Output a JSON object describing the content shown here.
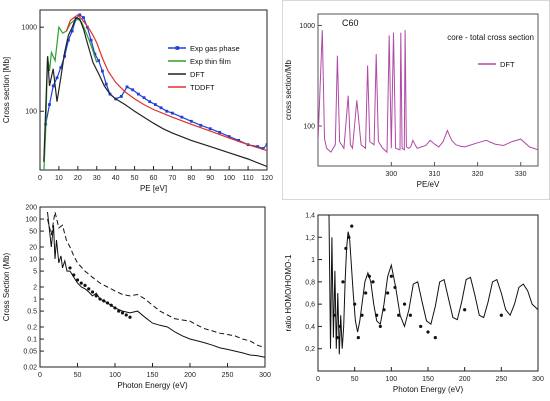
{
  "chart_data": [
    {
      "type": "line",
      "xlabel": "PE [eV]",
      "ylabel": "Cross section [Mb]",
      "xlim": [
        0,
        120
      ],
      "ylim": [
        20,
        1600
      ],
      "yscale": "log",
      "xticks": [
        0,
        10,
        20,
        30,
        40,
        50,
        60,
        70,
        80,
        90,
        100,
        110,
        120
      ],
      "yticks": [
        100,
        1000
      ],
      "legend_position": "right",
      "series": [
        {
          "name": "Exp gas phase",
          "color": "#1f3fd6",
          "marker": "square",
          "x": [
            3,
            5,
            7,
            9,
            11,
            13,
            15,
            17,
            19,
            21,
            23,
            25,
            27,
            29,
            31,
            33,
            35,
            37,
            40,
            43,
            46,
            49,
            52,
            55,
            58,
            61,
            64,
            67,
            70,
            75,
            80,
            85,
            90,
            95,
            100,
            105,
            110,
            115,
            118,
            120
          ],
          "y": [
            70,
            120,
            200,
            250,
            330,
            450,
            700,
            900,
            1250,
            1400,
            1300,
            1000,
            700,
            480,
            400,
            300,
            210,
            160,
            140,
            150,
            195,
            180,
            160,
            145,
            130,
            120,
            110,
            100,
            95,
            85,
            76,
            68,
            62,
            56,
            50,
            45,
            40,
            38,
            36,
            40
          ]
        },
        {
          "name": "Exp thin film",
          "color": "#2ca02c",
          "x": [
            2,
            3,
            4,
            5,
            6,
            8,
            10,
            12,
            14,
            16,
            18,
            20,
            22,
            24,
            26,
            28,
            30
          ],
          "y": [
            18,
            60,
            450,
            300,
            500,
            400,
            1000,
            850,
            900,
            1100,
            1200,
            1250,
            1150,
            900,
            700,
            520,
            380
          ]
        },
        {
          "name": "DFT",
          "color": "#222222",
          "x": [
            2,
            4,
            5,
            7,
            9,
            11,
            13,
            15,
            17,
            19,
            21,
            23,
            25,
            28,
            31,
            34,
            37,
            40,
            45,
            50,
            55,
            60,
            65,
            70,
            80,
            90,
            100,
            110,
            120
          ],
          "y": [
            25,
            450,
            200,
            320,
            130,
            250,
            500,
            800,
            1000,
            1300,
            1250,
            950,
            650,
            380,
            280,
            200,
            160,
            140,
            120,
            100,
            85,
            72,
            62,
            55,
            45,
            38,
            32,
            27,
            22
          ]
        },
        {
          "name": "TDDFT",
          "color": "#e0302a",
          "x": [
            14,
            16,
            18,
            20,
            22,
            24,
            26,
            28,
            30,
            33,
            36,
            40,
            45,
            50,
            55,
            60,
            70,
            80,
            90,
            100,
            110,
            120
          ],
          "y": [
            900,
            1200,
            1300,
            1400,
            1250,
            1100,
            950,
            800,
            650,
            430,
            300,
            220,
            170,
            140,
            120,
            105,
            85,
            70,
            58,
            48,
            40,
            34
          ]
        }
      ]
    },
    {
      "type": "line",
      "title": "C60",
      "subtitle": "core - total cross section",
      "xlabel": "PE/eV",
      "ylabel": "cross section/Mb",
      "xlim": [
        283,
        334
      ],
      "ylim": [
        40,
        1300
      ],
      "yscale": "log",
      "xticks": [
        300,
        310,
        320,
        330
      ],
      "yticks": [
        100,
        1000
      ],
      "legend_position": "top-right",
      "series": [
        {
          "name": "DFT",
          "color": "#b04aa6",
          "x": [
            283,
            284,
            284.5,
            285,
            286,
            287,
            287.5,
            288,
            289,
            290,
            290.5,
            291,
            292,
            293,
            294,
            294.5,
            295,
            296,
            296.5,
            297,
            298,
            299,
            299.5,
            300,
            300.5,
            301,
            302,
            302.2,
            302.5,
            303,
            303.2,
            303.5,
            304,
            304.5,
            305,
            305.5,
            306,
            307,
            308,
            309,
            310,
            311,
            312,
            313,
            314,
            315,
            316,
            317,
            318,
            320,
            322,
            324,
            326,
            328,
            330,
            332,
            334
          ],
          "y": [
            70,
            900,
            75,
            60,
            55,
            65,
            500,
            70,
            60,
            200,
            65,
            60,
            180,
            65,
            60,
            400,
            70,
            65,
            520,
            70,
            60,
            55,
            800,
            60,
            850,
            60,
            58,
            850,
            60,
            58,
            900,
            62,
            60,
            62,
            72,
            65,
            60,
            62,
            64,
            72,
            66,
            62,
            70,
            90,
            72,
            65,
            63,
            62,
            64,
            68,
            72,
            66,
            64,
            70,
            74,
            62,
            58
          ]
        }
      ]
    },
    {
      "type": "line",
      "xlabel": "Photon Energy (eV)",
      "ylabel": "Cross Section (Mb)",
      "xlim": [
        0,
        300
      ],
      "ylim": [
        0.02,
        200
      ],
      "yscale": "log",
      "xticks": [
        0,
        50,
        100,
        150,
        200,
        250,
        300
      ],
      "yticks": [
        0.02,
        0.05,
        0.1,
        0.2,
        0.5,
        1,
        2,
        5,
        10,
        20,
        50,
        100,
        200
      ],
      "ytick_labels": [
        "0.02",
        "0.05",
        "0.1",
        "0.2",
        "0.5",
        "1",
        "2",
        "5",
        "10",
        "20",
        "50",
        "100",
        "200"
      ],
      "series": [
        {
          "name": "",
          "style": "solid",
          "color": "#111111",
          "x": [
            10,
            15,
            18,
            20,
            22,
            25,
            28,
            30,
            33,
            36,
            40,
            45,
            50,
            55,
            60,
            65,
            70,
            75,
            80,
            90,
            100,
            110,
            120,
            130,
            140,
            150,
            160,
            170,
            180,
            190,
            200,
            210,
            220,
            230,
            240,
            250,
            260,
            270,
            280,
            290,
            300
          ],
          "y": [
            150,
            20,
            70,
            10,
            30,
            8,
            12,
            6,
            9,
            5,
            5,
            3.5,
            2.5,
            2,
            1.8,
            1.5,
            1.2,
            1.4,
            1,
            0.8,
            0.6,
            0.5,
            0.45,
            0.5,
            0.35,
            0.25,
            0.22,
            0.2,
            0.15,
            0.12,
            0.1,
            0.09,
            0.08,
            0.07,
            0.06,
            0.055,
            0.05,
            0.045,
            0.04,
            0.038,
            0.035
          ]
        },
        {
          "name": "",
          "style": "dashed",
          "color": "#111111",
          "x": [
            10,
            15,
            20,
            25,
            30,
            35,
            40,
            45,
            50,
            60,
            70,
            80,
            90,
            100,
            110,
            120,
            130,
            140,
            150,
            160,
            170,
            180,
            190,
            200,
            210,
            220,
            230,
            240,
            250,
            260,
            270,
            280,
            290,
            300
          ],
          "y": [
            100,
            40,
            150,
            60,
            70,
            30,
            20,
            12,
            8,
            5,
            3.5,
            2.5,
            2,
            1.6,
            1.3,
            1.2,
            1.3,
            1,
            0.7,
            0.5,
            0.4,
            0.32,
            0.3,
            0.28,
            0.22,
            0.18,
            0.16,
            0.14,
            0.13,
            0.12,
            0.1,
            0.09,
            0.07,
            0.06
          ]
        },
        {
          "name": "",
          "style": "markers",
          "color": "#111111",
          "x": [
            40,
            45,
            50,
            55,
            60,
            65,
            70,
            75,
            80,
            85,
            90,
            95,
            100,
            105,
            110,
            115,
            120
          ],
          "y": [
            6,
            4,
            3,
            2.5,
            2.2,
            1.8,
            1.5,
            1.2,
            1,
            0.9,
            0.8,
            0.7,
            0.6,
            0.5,
            0.45,
            0.4,
            0.35
          ]
        }
      ]
    },
    {
      "type": "line",
      "xlabel": "Photon Energy (eV)",
      "ylabel": "ratio HOMO/HOMO-1",
      "xlim": [
        0,
        300
      ],
      "ylim": [
        0,
        1.4
      ],
      "xticks": [
        0,
        50,
        100,
        150,
        200,
        250,
        300
      ],
      "yticks": [
        0.2,
        0.4,
        0.6,
        0.8,
        1.0,
        1.2,
        1.4
      ],
      "ytick_labels": [
        "0,2",
        "0,4",
        "0,6",
        "0,8",
        "1",
        "1,2",
        "1,4"
      ],
      "series": [
        {
          "name": "",
          "style": "solid",
          "color": "#111111",
          "x": [
            15,
            17,
            19,
            21,
            23,
            25,
            27,
            29,
            31,
            33,
            35,
            37,
            39,
            41,
            43,
            45,
            48,
            51,
            54,
            57,
            60,
            64,
            68,
            72,
            76,
            80,
            85,
            90,
            95,
            100,
            106,
            112,
            118,
            124,
            130,
            136,
            142,
            148,
            154,
            160,
            166,
            172,
            178,
            184,
            190,
            196,
            202,
            208,
            214,
            220,
            226,
            232,
            238,
            244,
            250,
            256,
            262,
            268,
            274,
            280,
            286,
            292,
            300
          ],
          "y": [
            1.4,
            0.2,
            1.2,
            0.3,
            0.9,
            0.2,
            0.7,
            0.15,
            0.5,
            0.2,
            0.4,
            0.8,
            1.1,
            1.25,
            1.2,
            1.0,
            0.7,
            0.45,
            0.35,
            0.45,
            0.6,
            0.8,
            0.88,
            0.8,
            0.6,
            0.45,
            0.42,
            0.6,
            0.85,
            0.95,
            0.75,
            0.5,
            0.4,
            0.55,
            0.78,
            0.8,
            0.62,
            0.45,
            0.42,
            0.58,
            0.8,
            0.82,
            0.65,
            0.48,
            0.46,
            0.62,
            0.82,
            0.84,
            0.68,
            0.5,
            0.48,
            0.62,
            0.8,
            0.82,
            0.7,
            0.55,
            0.5,
            0.6,
            0.75,
            0.78,
            0.72,
            0.6,
            0.55
          ]
        },
        {
          "name": "",
          "style": "markers",
          "color": "#111111",
          "x": [
            22,
            26,
            30,
            34,
            38,
            42,
            46,
            50,
            55,
            60,
            65,
            70,
            75,
            80,
            85,
            90,
            95,
            100,
            105,
            110,
            118,
            126,
            140,
            150,
            160,
            200,
            250
          ],
          "y": [
            0.5,
            0.3,
            0.4,
            0.8,
            1.1,
            1.2,
            1.3,
            0.6,
            0.3,
            0.5,
            0.7,
            0.85,
            0.8,
            0.5,
            0.4,
            0.55,
            0.7,
            0.85,
            0.75,
            0.5,
            0.6,
            0.5,
            0.4,
            0.35,
            0.3,
            0.55,
            0.5
          ]
        }
      ]
    }
  ]
}
